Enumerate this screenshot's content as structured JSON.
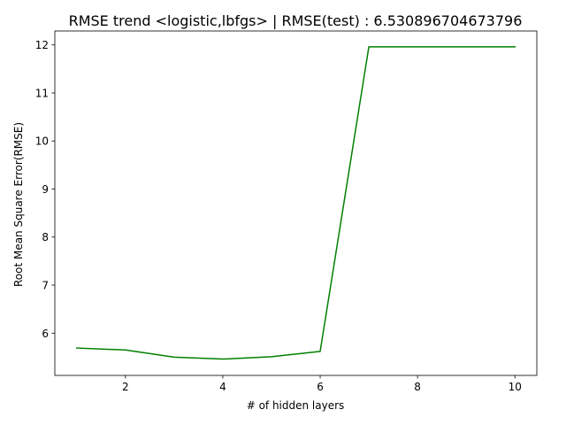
{
  "chart_data": {
    "type": "line",
    "title": "RMSE trend <logistic,lbfgs> | RMSE(test) : 6.530896704673796",
    "xlabel": "# of hidden layers",
    "ylabel": "Root Mean Square Error(RMSE)",
    "xlim": [
      0.55,
      10.45
    ],
    "ylim": [
      5.12,
      12.29
    ],
    "xticks": [
      2,
      4,
      6,
      8,
      10
    ],
    "yticks": [
      6,
      7,
      8,
      9,
      10,
      11,
      12
    ],
    "grid": false,
    "series": [
      {
        "color": "#008000",
        "x": [
          1,
          2,
          3,
          4,
          5,
          6,
          7,
          8,
          9,
          10
        ],
        "y": [
          5.69,
          5.65,
          5.5,
          5.46,
          5.51,
          5.62,
          11.96,
          11.96,
          11.96,
          11.96
        ]
      }
    ]
  }
}
